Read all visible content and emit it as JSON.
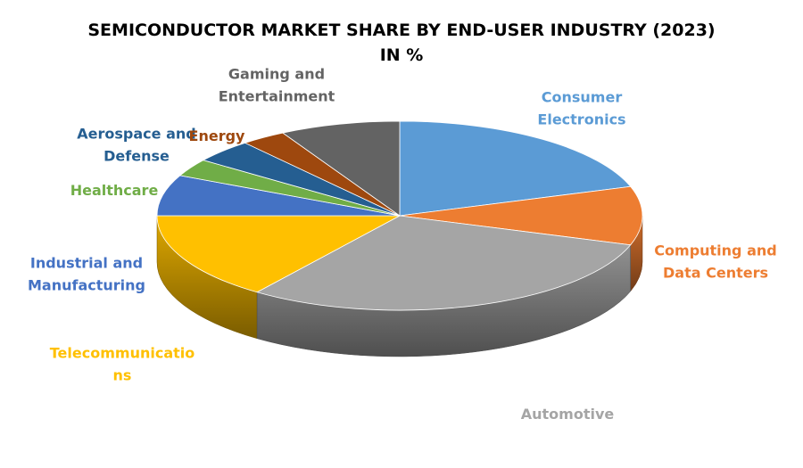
{
  "chart_data": {
    "type": "pie",
    "title": "SEMICONDUCTOR MARKET SHARE BY END-USER INDUSTRY (2023)",
    "subtitle": "IN %",
    "categories": [
      "Consumer Electronics",
      "Computing and Data Centers",
      "Automotive",
      "Telecommunications",
      "Industrial and Manufacturing",
      "Healthcare",
      "Aerospace and Defense",
      "Energy",
      "Gaming and Entertainment"
    ],
    "label_lines": [
      [
        "Consumer",
        "Electronics"
      ],
      [
        "Computing and",
        "Data Centers"
      ],
      [
        "Automotive"
      ],
      [
        "Telecommunicatio",
        "ns"
      ],
      [
        "Industrial and",
        "Manufacturing"
      ],
      [
        "Healthcare"
      ],
      [
        "Aerospace and",
        "Defense"
      ],
      [
        "Energy"
      ],
      [
        "Gaming and",
        "Entertainment"
      ]
    ],
    "values": [
      20,
      10,
      30,
      15,
      7,
      3,
      4,
      3,
      8
    ],
    "colors": [
      "#5B9BD5",
      "#ED7D31",
      "#A5A5A5",
      "#FFC000",
      "#4472C4",
      "#70AD47",
      "#255E91",
      "#9E480E",
      "#636363"
    ],
    "label_colors": [
      "#5B9BD5",
      "#ED7D31",
      "#A5A5A5",
      "#FFC000",
      "#4472C4",
      "#70AD47",
      "#255E91",
      "#9E480E",
      "#636363"
    ],
    "legend": "none",
    "style": "3d"
  }
}
